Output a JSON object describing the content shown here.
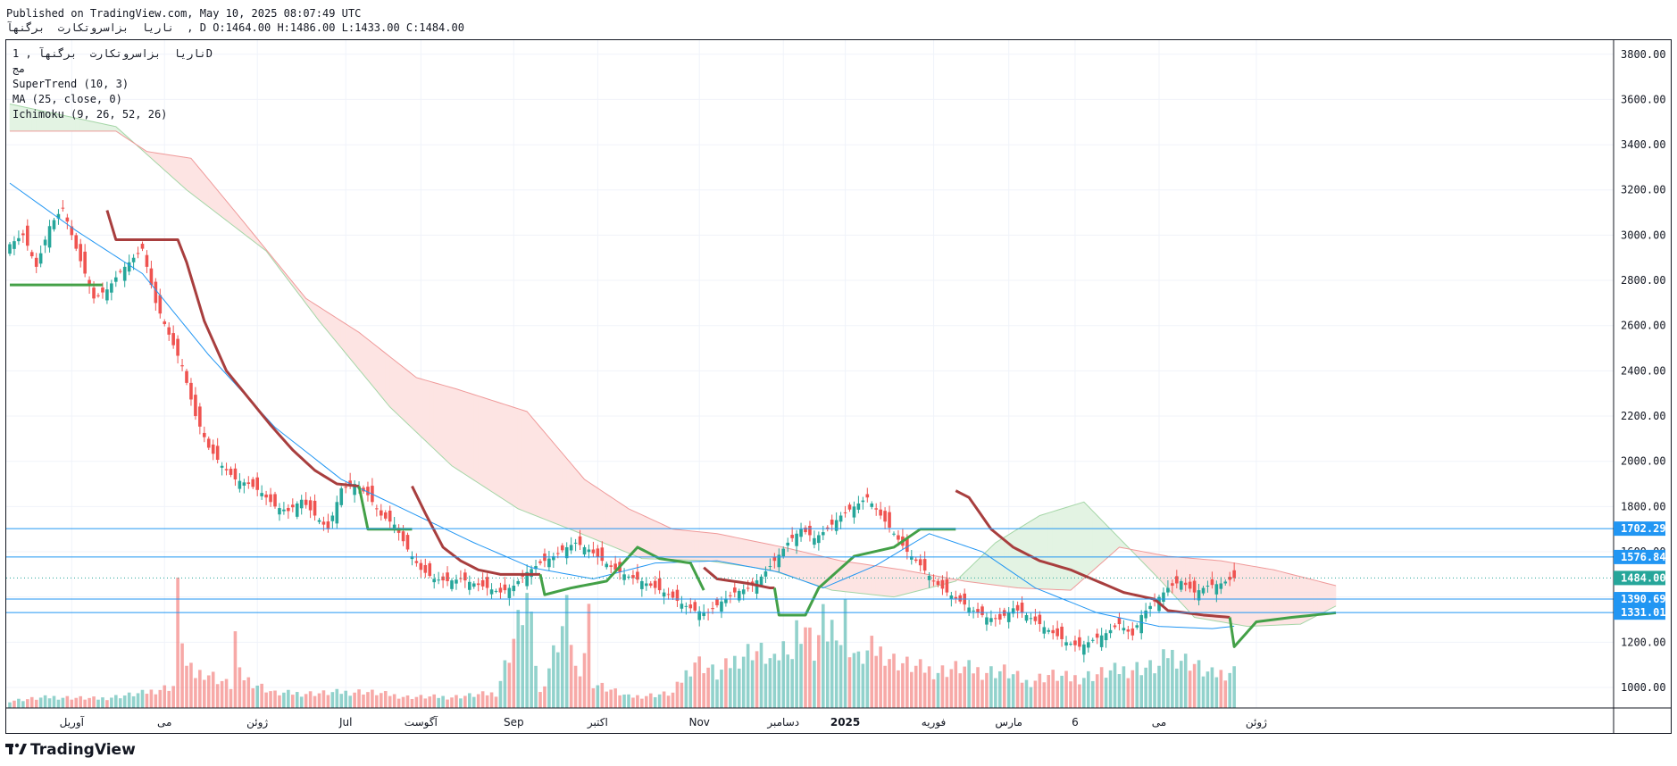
{
  "header": {
    "published": "Published on TradingView.com, May 10, 2025 08:07:49 UTC",
    "ohlc_line": "ناریا  بزاسروتکارت  برگنهآ  , D O:1464.00 H:1486.00 L:1433.00 C:1484.00"
  },
  "legend": {
    "symbol": "ناریا  بزاسروتکارت  برگنهآ , 1D",
    "exchange": "مج",
    "supertrend": "SuperTrend (10, 3)",
    "ma": "MA (25, close, 0)",
    "ichimoku": "Ichimoku (9, 26, 52, 26)"
  },
  "brand": {
    "logo": "17",
    "name": "TradingView"
  },
  "colors": {
    "up": "#26a69a",
    "down": "#ef5350",
    "supertrend_up": "#43a047",
    "supertrend_down": "#a83e3e",
    "ma": "#2196f3",
    "hline": "#2196f3",
    "cloud_bear": "#fde4e3",
    "cloud_bull": "#e3f3e3",
    "last_price": "#26a69a"
  },
  "chart_data": {
    "type": "candlestick",
    "title": "",
    "y_ticks": [
      1000,
      1200,
      1400,
      1600,
      1800,
      2000,
      2200,
      2400,
      2600,
      2800,
      3000,
      3200,
      3400,
      3600,
      3800
    ],
    "y_tick_labels": [
      "1000.00",
      "1200.00",
      "1400.00",
      "1600.00",
      "1800.00",
      "2000.00",
      "2200.00",
      "2400.00",
      "2600.00",
      "2800.00",
      "3000.00",
      "3200.00",
      "3400.00",
      "3600.00",
      "3800.00"
    ],
    "ylim": [
      880,
      3880
    ],
    "x_labels": [
      {
        "text": "آوریل",
        "idx": 14
      },
      {
        "text": "می",
        "idx": 35
      },
      {
        "text": "ژوئن",
        "idx": 56
      },
      {
        "text": "Jul",
        "idx": 76
      },
      {
        "text": "آگوست",
        "idx": 93
      },
      {
        "text": "Sep",
        "idx": 114
      },
      {
        "text": "اکتبر",
        "idx": 133
      },
      {
        "text": "Nov",
        "idx": 156
      },
      {
        "text": "دسامبر",
        "idx": 175
      },
      {
        "text": "2025",
        "idx": 189
      },
      {
        "text": "فوریه",
        "idx": 209
      },
      {
        "text": "مارس",
        "idx": 226
      },
      {
        "text": "6",
        "idx": 241
      },
      {
        "text": "می",
        "idx": 260
      },
      {
        "text": "ژوئن",
        "idx": 282
      }
    ],
    "price_labels": [
      {
        "value": 1702.29,
        "text": "1702.29",
        "color": "#2196f3"
      },
      {
        "value": 1576.84,
        "text": "1576.84",
        "color": "#2196f3"
      },
      {
        "value": 1484.0,
        "text": "1484.00",
        "color": "#26a69a"
      },
      {
        "value": 1390.69,
        "text": "1390.69",
        "color": "#2196f3"
      },
      {
        "value": 1331.01,
        "text": "1331.01",
        "color": "#2196f3"
      }
    ],
    "hlines": [
      1702.29,
      1576.84,
      1390.69,
      1331.01
    ],
    "last_price": 1484.0,
    "close_anchors": [
      [
        0,
        2960
      ],
      [
        3,
        3000
      ],
      [
        6,
        2860
      ],
      [
        9,
        3040
      ],
      [
        12,
        3120
      ],
      [
        15,
        2940
      ],
      [
        19,
        2720
      ],
      [
        22,
        2760
      ],
      [
        25,
        2840
      ],
      [
        28,
        2900
      ],
      [
        30,
        2940
      ],
      [
        33,
        2700
      ],
      [
        36,
        2560
      ],
      [
        39,
        2420
      ],
      [
        42,
        2200
      ],
      [
        45,
        2060
      ],
      [
        48,
        1980
      ],
      [
        51,
        1920
      ],
      [
        54,
        1900
      ],
      [
        57,
        1860
      ],
      [
        60,
        1800
      ],
      [
        63,
        1780
      ],
      [
        66,
        1830
      ],
      [
        69,
        1760
      ],
      [
        72,
        1700
      ],
      [
        75,
        1880
      ],
      [
        78,
        1900
      ],
      [
        81,
        1850
      ],
      [
        84,
        1760
      ],
      [
        87,
        1720
      ],
      [
        90,
        1610
      ],
      [
        93,
        1520
      ],
      [
        96,
        1480
      ],
      [
        99,
        1470
      ],
      [
        102,
        1480
      ],
      [
        105,
        1460
      ],
      [
        108,
        1440
      ],
      [
        111,
        1420
      ],
      [
        114,
        1450
      ],
      [
        117,
        1510
      ],
      [
        120,
        1550
      ],
      [
        123,
        1580
      ],
      [
        126,
        1620
      ],
      [
        128,
        1640
      ],
      [
        131,
        1610
      ],
      [
        134,
        1560
      ],
      [
        137,
        1520
      ],
      [
        140,
        1490
      ],
      [
        143,
        1470
      ],
      [
        146,
        1440
      ],
      [
        149,
        1410
      ],
      [
        152,
        1370
      ],
      [
        155,
        1340
      ],
      [
        158,
        1330
      ],
      [
        161,
        1380
      ],
      [
        164,
        1420
      ],
      [
        167,
        1440
      ],
      [
        170,
        1490
      ],
      [
        173,
        1560
      ],
      [
        176,
        1640
      ],
      [
        179,
        1700
      ],
      [
        182,
        1660
      ],
      [
        185,
        1700
      ],
      [
        188,
        1760
      ],
      [
        191,
        1800
      ],
      [
        194,
        1840
      ],
      [
        197,
        1760
      ],
      [
        200,
        1680
      ],
      [
        203,
        1600
      ],
      [
        206,
        1540
      ],
      [
        209,
        1470
      ],
      [
        212,
        1420
      ],
      [
        215,
        1380
      ],
      [
        218,
        1340
      ],
      [
        221,
        1310
      ],
      [
        224,
        1300
      ],
      [
        227,
        1350
      ],
      [
        230,
        1320
      ],
      [
        233,
        1280
      ],
      [
        236,
        1240
      ],
      [
        239,
        1200
      ],
      [
        242,
        1180
      ],
      [
        245,
        1210
      ],
      [
        248,
        1240
      ],
      [
        251,
        1280
      ],
      [
        254,
        1230
      ],
      [
        256,
        1320
      ],
      [
        259,
        1380
      ],
      [
        262,
        1440
      ],
      [
        265,
        1470
      ],
      [
        268,
        1420
      ],
      [
        271,
        1450
      ],
      [
        274,
        1460
      ],
      [
        277,
        1484
      ]
    ],
    "supertrend_segments": [
      {
        "trend": "up",
        "points": [
          [
            0,
            2780
          ],
          [
            21,
            2780
          ]
        ]
      },
      {
        "trend": "down",
        "points": [
          [
            22,
            3110
          ],
          [
            24,
            2980
          ],
          [
            38,
            2980
          ],
          [
            40,
            2880
          ],
          [
            44,
            2620
          ],
          [
            49,
            2400
          ],
          [
            54,
            2280
          ],
          [
            59,
            2160
          ],
          [
            64,
            2050
          ],
          [
            69,
            1960
          ],
          [
            74,
            1900
          ],
          [
            79,
            1890
          ]
        ]
      },
      {
        "trend": "up",
        "points": [
          [
            79,
            1890
          ],
          [
            81,
            1700
          ],
          [
            91,
            1700
          ]
        ]
      },
      {
        "trend": "down",
        "points": [
          [
            91,
            1890
          ],
          [
            94,
            1770
          ],
          [
            98,
            1620
          ],
          [
            102,
            1560
          ],
          [
            106,
            1520
          ],
          [
            111,
            1500
          ],
          [
            116,
            1500
          ],
          [
            120,
            1500
          ]
        ]
      },
      {
        "trend": "up",
        "points": [
          [
            120,
            1500
          ],
          [
            121,
            1410
          ],
          [
            127,
            1440
          ],
          [
            135,
            1470
          ],
          [
            142,
            1620
          ],
          [
            147,
            1570
          ],
          [
            154,
            1550
          ],
          [
            157,
            1430
          ]
        ]
      },
      {
        "trend": "down",
        "points": [
          [
            157,
            1530
          ],
          [
            160,
            1480
          ],
          [
            167,
            1460
          ],
          [
            172,
            1440
          ],
          [
            173,
            1440
          ]
        ]
      },
      {
        "trend": "up",
        "points": [
          [
            173,
            1440
          ],
          [
            174,
            1320
          ],
          [
            180,
            1320
          ],
          [
            183,
            1440
          ],
          [
            187,
            1510
          ],
          [
            191,
            1580
          ],
          [
            200,
            1620
          ],
          [
            206,
            1700
          ],
          [
            214,
            1700
          ]
        ]
      },
      {
        "trend": "down",
        "points": [
          [
            214,
            1870
          ],
          [
            217,
            1840
          ],
          [
            222,
            1700
          ],
          [
            227,
            1620
          ],
          [
            233,
            1560
          ],
          [
            240,
            1520
          ],
          [
            246,
            1470
          ],
          [
            252,
            1420
          ],
          [
            259,
            1390
          ],
          [
            262,
            1340
          ],
          [
            270,
            1320
          ],
          [
            276,
            1310
          ]
        ]
      },
      {
        "trend": "up",
        "points": [
          [
            276,
            1310
          ],
          [
            277,
            1180
          ],
          [
            282,
            1290
          ],
          [
            290,
            1310
          ],
          [
            300,
            1330
          ]
        ]
      }
    ],
    "ma_points": [
      [
        0,
        3230
      ],
      [
        15,
        3020
      ],
      [
        30,
        2830
      ],
      [
        45,
        2470
      ],
      [
        60,
        2150
      ],
      [
        75,
        1920
      ],
      [
        90,
        1780
      ],
      [
        105,
        1640
      ],
      [
        118,
        1530
      ],
      [
        132,
        1480
      ],
      [
        146,
        1550
      ],
      [
        160,
        1560
      ],
      [
        174,
        1510
      ],
      [
        184,
        1440
      ],
      [
        196,
        1540
      ],
      [
        208,
        1680
      ],
      [
        220,
        1600
      ],
      [
        232,
        1440
      ],
      [
        246,
        1330
      ],
      [
        260,
        1270
      ],
      [
        272,
        1260
      ],
      [
        286,
        1290
      ],
      [
        298,
        1350
      ]
    ],
    "senkou_a": [
      [
        0,
        3580
      ],
      [
        24,
        3480
      ],
      [
        40,
        3200
      ],
      [
        58,
        2930
      ],
      [
        70,
        2620
      ],
      [
        86,
        2240
      ],
      [
        100,
        1980
      ],
      [
        115,
        1790
      ],
      [
        128,
        1690
      ],
      [
        143,
        1570
      ],
      [
        158,
        1560
      ],
      [
        172,
        1520
      ],
      [
        186,
        1430
      ],
      [
        200,
        1400
      ],
      [
        214,
        1470
      ],
      [
        223,
        1640
      ],
      [
        233,
        1760
      ],
      [
        243,
        1820
      ],
      [
        251,
        1660
      ],
      [
        260,
        1480
      ],
      [
        268,
        1310
      ],
      [
        280,
        1270
      ],
      [
        292,
        1280
      ],
      [
        300,
        1360
      ]
    ],
    "senkou_b": [
      [
        0,
        3460
      ],
      [
        24,
        3460
      ],
      [
        31,
        3370
      ],
      [
        41,
        3340
      ],
      [
        52,
        3080
      ],
      [
        67,
        2720
      ],
      [
        79,
        2570
      ],
      [
        92,
        2370
      ],
      [
        101,
        2320
      ],
      [
        117,
        2220
      ],
      [
        130,
        1920
      ],
      [
        140,
        1790
      ],
      [
        150,
        1700
      ],
      [
        160,
        1680
      ],
      [
        175,
        1620
      ],
      [
        188,
        1560
      ],
      [
        202,
        1520
      ],
      [
        216,
        1470
      ],
      [
        228,
        1440
      ],
      [
        240,
        1430
      ],
      [
        251,
        1620
      ],
      [
        262,
        1580
      ],
      [
        274,
        1560
      ],
      [
        286,
        1520
      ],
      [
        300,
        1450
      ]
    ],
    "volume": [
      [
        0,
        4
      ],
      [
        10,
        6
      ],
      [
        20,
        5
      ],
      [
        30,
        8
      ],
      [
        37,
        12
      ],
      [
        38,
        60
      ],
      [
        40,
        22
      ],
      [
        42,
        18
      ],
      [
        44,
        20
      ],
      [
        50,
        12
      ],
      [
        51,
        40
      ],
      [
        52,
        18
      ],
      [
        55,
        14
      ],
      [
        60,
        8
      ],
      [
        70,
        8
      ],
      [
        80,
        9
      ],
      [
        90,
        6
      ],
      [
        100,
        6
      ],
      [
        110,
        8
      ],
      [
        117,
        60
      ],
      [
        120,
        8
      ],
      [
        126,
        52
      ],
      [
        127,
        40
      ],
      [
        128,
        22
      ],
      [
        129,
        14
      ],
      [
        131,
        52
      ],
      [
        132,
        14
      ],
      [
        140,
        6
      ],
      [
        150,
        8
      ],
      [
        155,
        26
      ],
      [
        158,
        22
      ],
      [
        160,
        18
      ],
      [
        165,
        28
      ],
      [
        168,
        32
      ],
      [
        170,
        30
      ],
      [
        173,
        24
      ],
      [
        176,
        38
      ],
      [
        177,
        28
      ],
      [
        178,
        42
      ],
      [
        180,
        44
      ],
      [
        182,
        30
      ],
      [
        184,
        46
      ],
      [
        185,
        40
      ],
      [
        187,
        48
      ],
      [
        188,
        36
      ],
      [
        189,
        52
      ],
      [
        190,
        34
      ],
      [
        192,
        26
      ],
      [
        195,
        32
      ],
      [
        198,
        30
      ],
      [
        200,
        26
      ],
      [
        205,
        22
      ],
      [
        210,
        20
      ],
      [
        215,
        22
      ],
      [
        220,
        20
      ],
      [
        225,
        20
      ],
      [
        230,
        14
      ],
      [
        235,
        18
      ],
      [
        240,
        16
      ],
      [
        245,
        18
      ],
      [
        250,
        20
      ],
      [
        255,
        22
      ],
      [
        260,
        22
      ],
      [
        262,
        30
      ],
      [
        264,
        28
      ],
      [
        266,
        26
      ],
      [
        268,
        24
      ],
      [
        270,
        20
      ],
      [
        272,
        18
      ],
      [
        276,
        20
      ]
    ]
  }
}
